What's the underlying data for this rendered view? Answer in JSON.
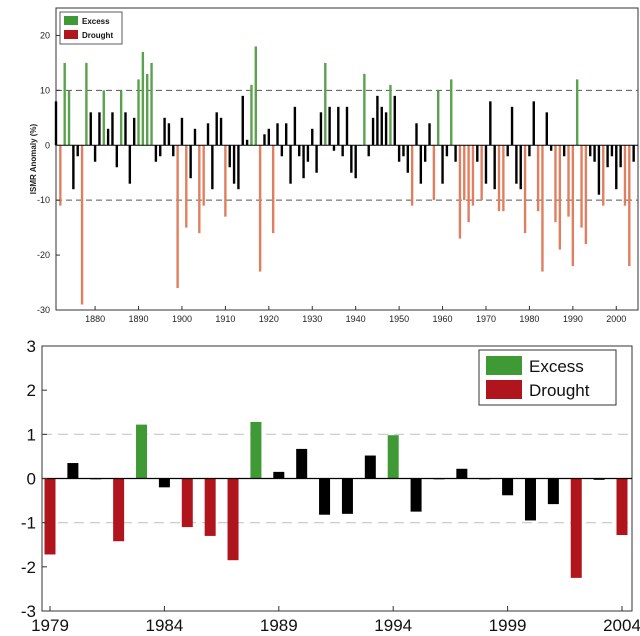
{
  "colors": {
    "excess": "#5aa24e",
    "drought": "#e07f5f",
    "excess_strong": "#3f9a35",
    "drought_strong": "#b0141c",
    "normal": "#000000",
    "grid": "#555555",
    "grid_light": "#c8c8c8"
  },
  "chart_data": [
    {
      "type": "bar",
      "title": "",
      "ylabel": "ISMR Anomaly (%)",
      "xlabel": "",
      "ylim": [
        -30,
        25
      ],
      "xlim": [
        1871,
        2005
      ],
      "yticks": [
        "20",
        "10",
        "0",
        "-10",
        "-20",
        "-30"
      ],
      "xticks": [
        "1880",
        "1890",
        "1900",
        "1910",
        "1920",
        "1930",
        "1940",
        "1950",
        "1960",
        "1970",
        "1980",
        "1990",
        "2000"
      ],
      "reference_lines": [
        10,
        -10
      ],
      "legend": {
        "placement": "top-left",
        "entries": [
          "Excess",
          "Drought"
        ]
      },
      "years": [
        1871,
        1872,
        1873,
        1874,
        1875,
        1876,
        1877,
        1878,
        1879,
        1880,
        1881,
        1882,
        1883,
        1884,
        1885,
        1886,
        1887,
        1888,
        1889,
        1890,
        1891,
        1892,
        1893,
        1894,
        1895,
        1896,
        1897,
        1898,
        1899,
        1900,
        1901,
        1902,
        1903,
        1904,
        1905,
        1906,
        1907,
        1908,
        1909,
        1910,
        1911,
        1912,
        1913,
        1914,
        1915,
        1916,
        1917,
        1918,
        1919,
        1920,
        1921,
        1922,
        1923,
        1924,
        1925,
        1926,
        1927,
        1928,
        1929,
        1930,
        1931,
        1932,
        1933,
        1934,
        1935,
        1936,
        1937,
        1938,
        1939,
        1940,
        1941,
        1942,
        1943,
        1944,
        1945,
        1946,
        1947,
        1948,
        1949,
        1950,
        1951,
        1952,
        1953,
        1954,
        1955,
        1956,
        1957,
        1958,
        1959,
        1960,
        1961,
        1962,
        1963,
        1964,
        1965,
        1966,
        1967,
        1968,
        1969,
        1970,
        1971,
        1972,
        1973,
        1974,
        1975,
        1976,
        1977,
        1978,
        1979,
        1980,
        1981,
        1982,
        1983,
        1984,
        1985,
        1986,
        1987,
        1988,
        1989,
        1990,
        1991,
        1992,
        1993,
        1994,
        1995,
        1996,
        1997,
        1998,
        1999,
        2000,
        2001,
        2002,
        2003,
        2004
      ],
      "values": [
        8,
        -11,
        15,
        10,
        -8,
        -2,
        -29,
        15,
        6,
        -3,
        6,
        10,
        3,
        6,
        -4,
        10,
        6,
        -7,
        5,
        12,
        17,
        13,
        15,
        -3,
        -2,
        5,
        4,
        -2,
        -26,
        5,
        -15,
        -6,
        3,
        -16,
        -11,
        4,
        -8,
        6,
        5,
        -13,
        -4,
        -7,
        -8,
        9,
        1,
        11,
        18,
        -23,
        2,
        3,
        -16,
        4,
        -2,
        4,
        -7,
        7,
        -2,
        -6,
        -3,
        3,
        -5,
        6,
        15,
        7,
        -1,
        7,
        -2,
        7,
        -5,
        -6,
        0,
        13,
        -2,
        5,
        9,
        7,
        6,
        11,
        9,
        -3,
        -2,
        -5,
        -11,
        4,
        -7,
        -3,
        4,
        -10,
        10,
        -7,
        -2,
        12,
        -3,
        -17,
        -10,
        -14,
        -11,
        -3,
        -10,
        -7,
        8,
        -8,
        -12,
        -12,
        -2,
        7,
        -7,
        -8,
        -16,
        -2,
        8,
        -12,
        -23,
        6,
        -1,
        -14,
        -19,
        -2,
        -13,
        -22,
        12,
        -15,
        -18,
        -2,
        -3,
        -9,
        -11,
        -4,
        -2,
        -8,
        -4,
        -11,
        -22,
        -3
      ]
    },
    {
      "type": "bar",
      "title": "",
      "xlabel": "",
      "ylabel": "",
      "ylim": [
        -3,
        3
      ],
      "xlim": [
        1979,
        2004
      ],
      "yticks": [
        "3",
        "2",
        "1",
        "0",
        "-1",
        "-2",
        "-3"
      ],
      "xticks": [
        "1979",
        "1984",
        "1989",
        "1994",
        "1999",
        "2004"
      ],
      "reference_lines": [
        1,
        -1
      ],
      "legend": {
        "placement": "top-right",
        "entries": [
          "Excess",
          "Drought"
        ]
      },
      "years": [
        1979,
        1980,
        1981,
        1982,
        1983,
        1984,
        1985,
        1986,
        1987,
        1988,
        1989,
        1990,
        1991,
        1992,
        1993,
        1994,
        1995,
        1996,
        1997,
        1998,
        1999,
        2000,
        2001,
        2002,
        2003,
        2004
      ],
      "values": [
        -1.72,
        0.35,
        0.0,
        -1.42,
        1.22,
        -0.2,
        -1.1,
        -1.3,
        -1.85,
        1.28,
        0.15,
        0.67,
        -0.82,
        -0.8,
        0.52,
        0.98,
        -0.75,
        0.0,
        0.22,
        -0.02,
        -0.38,
        -0.95,
        -0.58,
        -2.25,
        -0.03,
        -1.28
      ],
      "categories": [
        "drought",
        "normal",
        "normal",
        "drought",
        "excess",
        "normal",
        "drought",
        "drought",
        "drought",
        "excess",
        "normal",
        "normal",
        "normal",
        "normal",
        "normal",
        "excess",
        "normal",
        "normal",
        "normal",
        "normal",
        "normal",
        "normal",
        "normal",
        "drought",
        "normal",
        "drought"
      ]
    }
  ]
}
